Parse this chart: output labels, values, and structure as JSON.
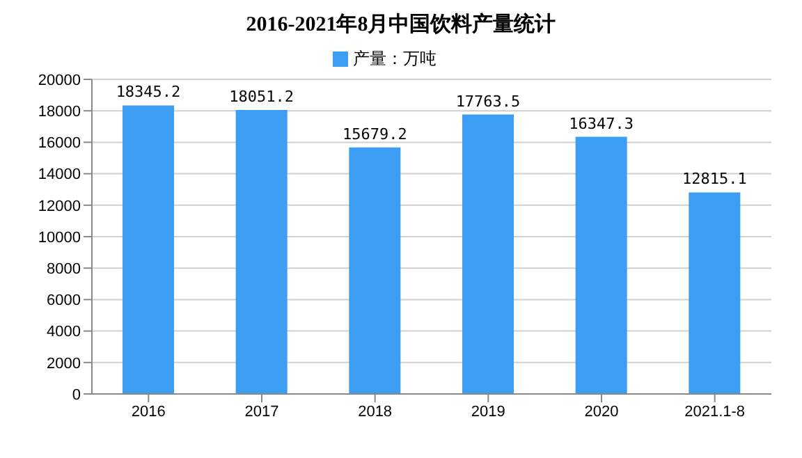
{
  "chart_data": {
    "type": "bar",
    "title": "2016-2021年8月中国饮料产量统计",
    "categories": [
      "2016",
      "2017",
      "2018",
      "2019",
      "2020",
      "2021.1-8"
    ],
    "series": [
      {
        "name": "产量：万吨",
        "color": "#3c9ef2",
        "values": [
          18345.2,
          18051.2,
          15679.2,
          17763.5,
          16347.3,
          12815.1
        ]
      }
    ],
    "ylim": [
      0,
      20000
    ],
    "yticks": [
      0,
      2000,
      4000,
      6000,
      8000,
      10000,
      12000,
      14000,
      16000,
      18000,
      20000
    ],
    "grid": "y",
    "legend": "top",
    "data_labels": true
  }
}
